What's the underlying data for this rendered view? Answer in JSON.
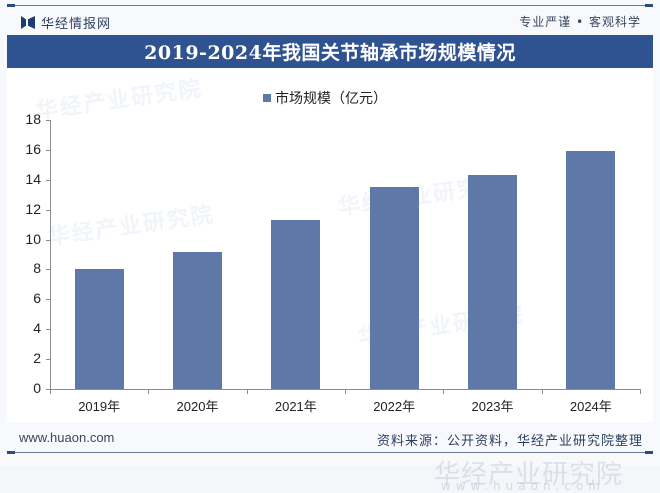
{
  "header": {
    "logo_text": "华经情报网",
    "slogan": "专业严谨 • 客观科学"
  },
  "title": "2019-2024年我国关节轴承市场规模情况",
  "legend": {
    "label": "市场规模（亿元）",
    "color": "#5e79a8"
  },
  "footer": {
    "url": "www.huaon.com",
    "source": "资料来源：公开资料，华经产业研究院整理"
  },
  "watermark": {
    "text": "华经产业研究院",
    "url": "www.huaon.com"
  },
  "colors": {
    "title_bar": "#2f5291",
    "bar": "#5e79a8",
    "text": "#222222"
  },
  "chart_data": {
    "type": "bar",
    "title": "2019-2024年我国关节轴承市场规模情况",
    "categories": [
      "2019年",
      "2020年",
      "2021年",
      "2022年",
      "2023年",
      "2024年"
    ],
    "series": [
      {
        "name": "市场规模（亿元）",
        "values": [
          8.0,
          9.2,
          11.3,
          13.5,
          14.3,
          15.9
        ]
      }
    ],
    "xlabel": "",
    "ylabel": "",
    "ylim": [
      0,
      18
    ],
    "yticks": [
      0,
      2,
      4,
      6,
      8,
      10,
      12,
      14,
      16,
      18
    ],
    "grid": false,
    "legend_position": "top"
  }
}
